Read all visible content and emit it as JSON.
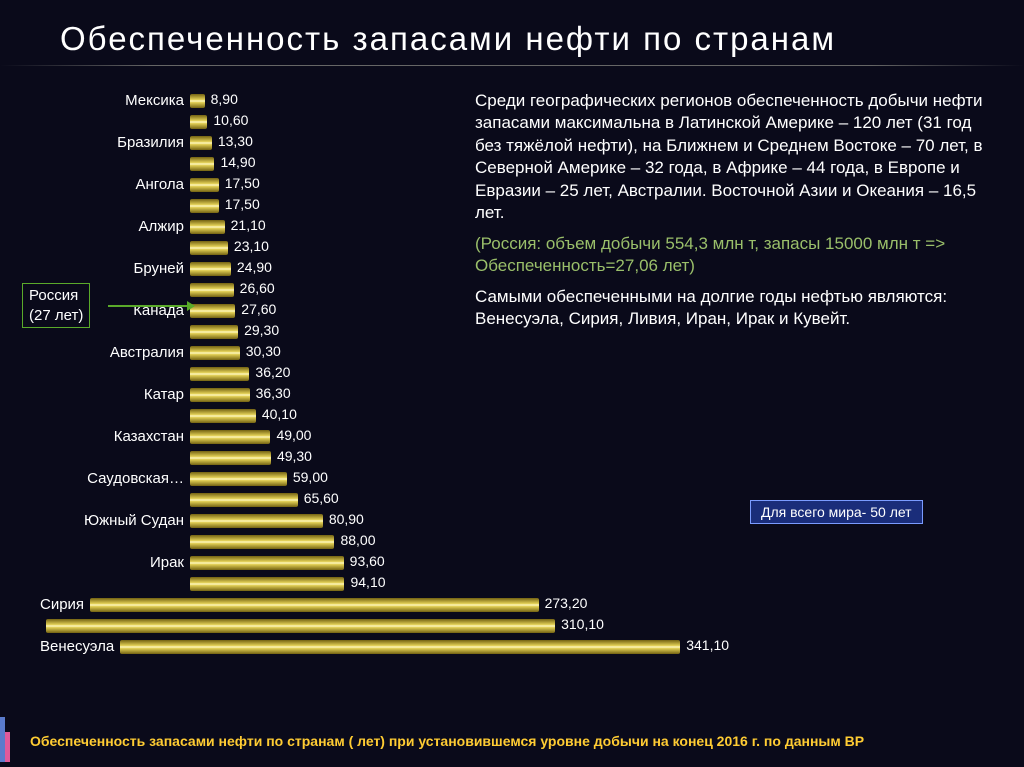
{
  "title": "Обеспеченность запасами нефти по странам",
  "chart": {
    "type": "bar",
    "orientation": "horizontal",
    "max_value": 341.1,
    "bar_color_gradient": [
      "#736212",
      "#e2cf55",
      "#fff9c4"
    ],
    "background_color": "#0a0a1a",
    "label_fontsize": 15,
    "value_fontsize": 14,
    "bars": [
      {
        "label": "Мексика",
        "value": 8.9,
        "value_text": "8,90"
      },
      {
        "label": "",
        "value": 10.6,
        "value_text": "10,60"
      },
      {
        "label": "Бразилия",
        "value": 13.3,
        "value_text": "13,30"
      },
      {
        "label": "",
        "value": 14.9,
        "value_text": "14,90"
      },
      {
        "label": "Ангола",
        "value": 17.5,
        "value_text": "17,50"
      },
      {
        "label": "",
        "value": 17.5,
        "value_text": "17,50"
      },
      {
        "label": "Алжир",
        "value": 21.1,
        "value_text": "21,10"
      },
      {
        "label": "",
        "value": 23.1,
        "value_text": "23,10"
      },
      {
        "label": "Бруней",
        "value": 24.9,
        "value_text": "24,90"
      },
      {
        "label": "",
        "value": 26.6,
        "value_text": "26,60"
      },
      {
        "label": "Канада",
        "value": 27.6,
        "value_text": "27,60"
      },
      {
        "label": "",
        "value": 29.3,
        "value_text": "29,30"
      },
      {
        "label": "Австралия",
        "value": 30.3,
        "value_text": "30,30"
      },
      {
        "label": "",
        "value": 36.2,
        "value_text": "36,20"
      },
      {
        "label": "Катар",
        "value": 36.3,
        "value_text": "36,30"
      },
      {
        "label": "",
        "value": 40.1,
        "value_text": "40,10"
      },
      {
        "label": "Казахстан",
        "value": 49.0,
        "value_text": "49,00"
      },
      {
        "label": "",
        "value": 49.3,
        "value_text": "49,30"
      },
      {
        "label": "Саудовская…",
        "value": 59.0,
        "value_text": "59,00"
      },
      {
        "label": "",
        "value": 65.6,
        "value_text": "65,60"
      },
      {
        "label": "Южный Судан",
        "value": 80.9,
        "value_text": "80,90"
      },
      {
        "label": "",
        "value": 88.0,
        "value_text": "88,00"
      },
      {
        "label": "Ирак",
        "value": 93.6,
        "value_text": "93,60"
      },
      {
        "label": "",
        "value": 94.1,
        "value_text": "94,10"
      },
      {
        "label": "Сирия",
        "value": 273.2,
        "value_text": "273,20"
      },
      {
        "label": "",
        "value": 310.1,
        "value_text": "310,10"
      },
      {
        "label": "Венесуэла",
        "value": 341.1,
        "value_text": "341,10"
      }
    ]
  },
  "russia_callout": {
    "line1": "Россия",
    "line2": "(27 лет)",
    "border_color": "#5aaa2a"
  },
  "text": {
    "p1": "Среди географических регионов обеспеченность добычи нефти запасами максимальна в Латинской Америке – 120 лет (31 год без тяжёлой нефти), на Ближнем и Среднем Востоке – 70 лет, в Северной Америке – 32 года, в Африке – 44 года, в Европе и Евразии – 25 лет, Австралии. Восточной Азии и Океания – 16,5 лет.",
    "p2": "(Россия: объем добычи 554,3 млн т, запасы 15000 млн т => Обеспеченность=27,06 лет)",
    "p3": "Самыми обеспеченными на долгие годы нефтью являются: Венесуэла, Сирия, Ливия, Иран, Ирак и Кувейт.",
    "p2_color": "#9abf6a"
  },
  "world_box": {
    "text": "Для всего мира- 50 лет",
    "background_color": "#1a2d7a",
    "border_color": "#7a9bff"
  },
  "bottom_note": {
    "text": "Обеспеченность запасами нефти по странам ( лет) при установившемся уровне добычи на конец 2016 г. по данным BP",
    "color": "#ffcc33"
  }
}
